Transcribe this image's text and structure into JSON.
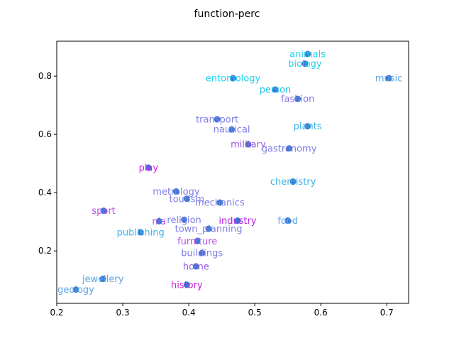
{
  "chart_data": {
    "type": "scatter",
    "title": "function-perc",
    "xlabel": "",
    "ylabel": "",
    "xlim": [
      0.2,
      0.733
    ],
    "ylim": [
      0.02,
      0.92
    ],
    "xticks": [
      "0.2",
      "0.3",
      "0.4",
      "0.5",
      "0.6",
      "0.7"
    ],
    "yticks": [
      "0.2",
      "0.4",
      "0.6",
      "0.8"
    ],
    "grid": false,
    "marker_color": "#3b78d4",
    "points": [
      {
        "label": "animals",
        "x": 0.58,
        "y": 0.876,
        "color": "#22d3ee"
      },
      {
        "label": "biology",
        "x": 0.576,
        "y": 0.843,
        "color": "#22d3ee"
      },
      {
        "label": "music",
        "x": 0.703,
        "y": 0.793,
        "color": "#5ba6e6"
      },
      {
        "label": "entomology",
        "x": 0.467,
        "y": 0.793,
        "color": "#22d3ee"
      },
      {
        "label": "person",
        "x": 0.531,
        "y": 0.754,
        "color": "#22c6e6"
      },
      {
        "label": "fashion",
        "x": 0.565,
        "y": 0.722,
        "color": "#8a6fe0"
      },
      {
        "label": "transport",
        "x": 0.443,
        "y": 0.652,
        "color": "#7e7ee6"
      },
      {
        "label": "plants",
        "x": 0.58,
        "y": 0.628,
        "color": "#3db4e8"
      },
      {
        "label": "nautical",
        "x": 0.465,
        "y": 0.617,
        "color": "#7e7ee6"
      },
      {
        "label": "military",
        "x": 0.49,
        "y": 0.566,
        "color": "#9b59e0"
      },
      {
        "label": "play",
        "x": 0.339,
        "y": 0.486,
        "color": "#d11ee6"
      },
      {
        "label": "gastronomy",
        "x": 0.552,
        "y": 0.552,
        "color": "#7e7ee6"
      },
      {
        "label": "chemistry",
        "x": 0.558,
        "y": 0.438,
        "color": "#3db4e8"
      },
      {
        "label": "metrology",
        "x": 0.381,
        "y": 0.404,
        "color": "#7e7ee6"
      },
      {
        "label": "tourism",
        "x": 0.397,
        "y": 0.379,
        "color": "#7e7ee6"
      },
      {
        "label": "mechanics",
        "x": 0.447,
        "y": 0.366,
        "color": "#7e7ee6"
      },
      {
        "label": "sport",
        "x": 0.271,
        "y": 0.338,
        "color": "#b84ee8"
      },
      {
        "label": "religion",
        "x": 0.393,
        "y": 0.307,
        "color": "#7e7ee6"
      },
      {
        "label": "industry",
        "x": 0.474,
        "y": 0.304,
        "color": "#b51ee6"
      },
      {
        "label": "food",
        "x": 0.55,
        "y": 0.304,
        "color": "#5ba6e6"
      },
      {
        "label": "nia",
        "x": 0.355,
        "y": 0.302,
        "color": "#b84ee8"
      },
      {
        "label": "town_planning",
        "x": 0.43,
        "y": 0.276,
        "color": "#7e7ee6"
      },
      {
        "label": "publishing",
        "x": 0.327,
        "y": 0.264,
        "color": "#3db4e8"
      },
      {
        "label": "furniture",
        "x": 0.413,
        "y": 0.234,
        "color": "#b84ee8"
      },
      {
        "label": "buildings",
        "x": 0.42,
        "y": 0.193,
        "color": "#7e7ee6"
      },
      {
        "label": "home",
        "x": 0.411,
        "y": 0.147,
        "color": "#9b59e0"
      },
      {
        "label": "jewellery",
        "x": 0.27,
        "y": 0.104,
        "color": "#5ba6e6"
      },
      {
        "label": "history",
        "x": 0.397,
        "y": 0.084,
        "color": "#c81ed6"
      },
      {
        "label": "geology",
        "x": 0.229,
        "y": 0.067,
        "color": "#5ba6e6"
      }
    ]
  }
}
